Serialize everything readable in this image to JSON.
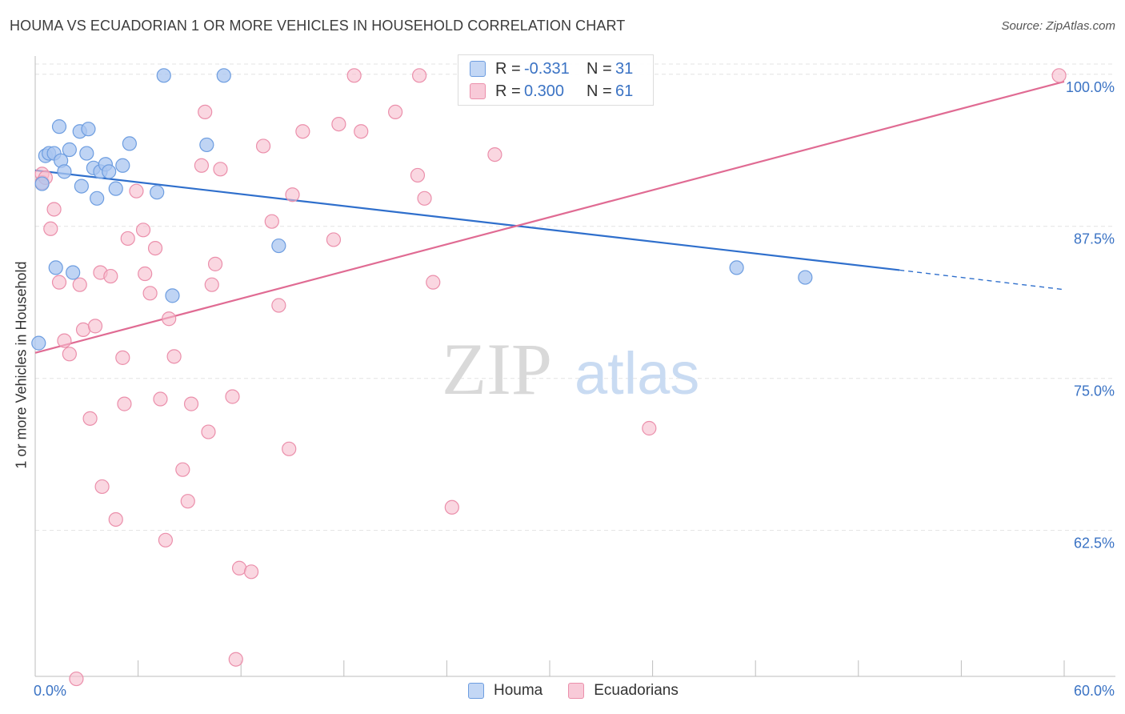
{
  "title": "HOUMA VS ECUADORIAN 1 OR MORE VEHICLES IN HOUSEHOLD CORRELATION CHART",
  "source": "Source: ZipAtlas.com",
  "watermark": {
    "zip": "ZIP",
    "atlas": "atlas"
  },
  "legend": {
    "rows": [
      {
        "r_label": "R =",
        "r_value": "-0.331",
        "n_label": "N =",
        "n_value": "31"
      },
      {
        "r_label": "R =",
        "r_value": "0.300",
        "n_label": "N =",
        "n_value": "61"
      }
    ]
  },
  "bottom_legend": [
    {
      "label": "Houma"
    },
    {
      "label": "Ecuadorians"
    }
  ],
  "colors": {
    "houma_fill": "#a9c6f0",
    "houma_stroke": "#6d9de0",
    "houma_line": "#2f6fcc",
    "ecu_fill": "#f6bccd",
    "ecu_stroke": "#eb8fab",
    "ecu_line": "#e06b93",
    "tick_text": "#3b73c4",
    "grid": "#e3e3e3"
  },
  "chart_data": {
    "type": "scatter",
    "title": "HOUMA VS ECUADORIAN 1 OR MORE VEHICLES IN HOUSEHOLD CORRELATION CHART",
    "xlabel": "",
    "ylabel": "1 or more Vehicles in Household",
    "xlim": [
      0,
      60
    ],
    "ylim": [
      50.5,
      101.5
    ],
    "x_tick_labels": [
      "0.0%",
      "60.0%"
    ],
    "y_ticks": [
      62.5,
      75.0,
      87.5,
      100.0
    ],
    "y_tick_labels": [
      "62.5%",
      "75.0%",
      "87.5%",
      "100.0%"
    ],
    "series": [
      {
        "name": "Houma",
        "r": -0.331,
        "n": 31,
        "trend": {
          "x0": 0,
          "y0": 92.1,
          "x1": 50.4,
          "y1": 83.9,
          "dash_to_x": 60,
          "dash_to_y": 82.3
        },
        "points": [
          [
            0.2,
            77.9
          ],
          [
            0.4,
            91.0
          ],
          [
            0.6,
            93.3
          ],
          [
            0.8,
            93.5
          ],
          [
            1.1,
            93.5
          ],
          [
            1.2,
            84.1
          ],
          [
            1.4,
            95.7
          ],
          [
            1.5,
            92.9
          ],
          [
            1.7,
            92.0
          ],
          [
            2.0,
            93.8
          ],
          [
            2.2,
            83.7
          ],
          [
            2.6,
            95.3
          ],
          [
            2.7,
            90.8
          ],
          [
            3.0,
            93.5
          ],
          [
            3.1,
            95.5
          ],
          [
            3.4,
            92.3
          ],
          [
            3.6,
            89.8
          ],
          [
            3.8,
            92.0
          ],
          [
            4.1,
            92.6
          ],
          [
            4.3,
            92.0
          ],
          [
            4.7,
            90.6
          ],
          [
            5.1,
            92.5
          ],
          [
            5.5,
            94.3
          ],
          [
            7.1,
            90.3
          ],
          [
            7.5,
            99.9
          ],
          [
            8.0,
            81.8
          ],
          [
            10.0,
            94.2
          ],
          [
            11.0,
            99.9
          ],
          [
            14.2,
            85.9
          ],
          [
            40.9,
            84.1
          ],
          [
            44.9,
            83.3
          ]
        ]
      },
      {
        "name": "Ecuadorians",
        "r": 0.3,
        "n": 61,
        "trend": {
          "x0": 0,
          "y0": 77.1,
          "x1": 60,
          "y1": 99.4
        },
        "points": [
          [
            0.4,
            91.8
          ],
          [
            0.4,
            91.1
          ],
          [
            0.6,
            91.5
          ],
          [
            0.9,
            87.3
          ],
          [
            1.1,
            88.9
          ],
          [
            1.4,
            82.9
          ],
          [
            1.7,
            78.1
          ],
          [
            2.0,
            77.0
          ],
          [
            2.6,
            82.7
          ],
          [
            2.8,
            79.0
          ],
          [
            3.2,
            71.7
          ],
          [
            3.5,
            79.3
          ],
          [
            3.8,
            83.7
          ],
          [
            3.9,
            66.1
          ],
          [
            4.4,
            83.4
          ],
          [
            4.7,
            63.4
          ],
          [
            5.1,
            76.7
          ],
          [
            5.2,
            72.9
          ],
          [
            5.4,
            86.5
          ],
          [
            5.9,
            90.4
          ],
          [
            6.3,
            87.2
          ],
          [
            6.4,
            83.6
          ],
          [
            6.7,
            82.0
          ],
          [
            7.0,
            85.7
          ],
          [
            7.3,
            73.3
          ],
          [
            7.6,
            61.7
          ],
          [
            7.8,
            79.9
          ],
          [
            8.1,
            76.8
          ],
          [
            8.6,
            67.5
          ],
          [
            8.9,
            64.9
          ],
          [
            9.1,
            72.9
          ],
          [
            9.7,
            92.5
          ],
          [
            9.9,
            96.9
          ],
          [
            10.1,
            70.6
          ],
          [
            10.3,
            82.7
          ],
          [
            10.5,
            84.4
          ],
          [
            10.8,
            92.2
          ],
          [
            11.5,
            73.5
          ],
          [
            11.7,
            51.9
          ],
          [
            11.9,
            59.4
          ],
          [
            12.6,
            59.1
          ],
          [
            13.3,
            94.1
          ],
          [
            13.8,
            87.9
          ],
          [
            14.2,
            81.0
          ],
          [
            14.8,
            69.2
          ],
          [
            15.0,
            90.1
          ],
          [
            15.6,
            95.3
          ],
          [
            17.4,
            86.4
          ],
          [
            17.7,
            95.9
          ],
          [
            18.6,
            99.9
          ],
          [
            19.0,
            95.3
          ],
          [
            21.0,
            96.9
          ],
          [
            22.3,
            91.7
          ],
          [
            22.4,
            99.9
          ],
          [
            22.7,
            89.8
          ],
          [
            23.2,
            82.9
          ],
          [
            24.3,
            64.4
          ],
          [
            26.8,
            93.4
          ],
          [
            35.8,
            70.9
          ],
          [
            59.7,
            99.9
          ],
          [
            2.4,
            50.3
          ]
        ]
      }
    ]
  }
}
